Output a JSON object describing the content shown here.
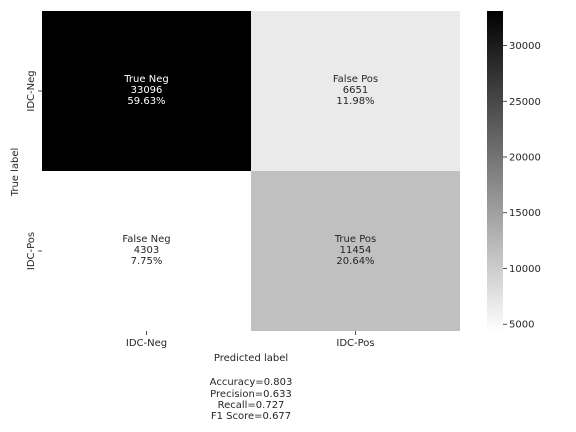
{
  "chart_data": {
    "type": "heatmap",
    "xlabel": "Predicted label",
    "ylabel": "True label",
    "x_categories": [
      "IDC-Neg",
      "IDC-Pos"
    ],
    "y_categories": [
      "IDC-Neg",
      "IDC-Pos"
    ],
    "cells": [
      {
        "row": 0,
        "col": 0,
        "name": "True Neg",
        "count": 33096,
        "count_label": "33096",
        "percent": "59.63%"
      },
      {
        "row": 0,
        "col": 1,
        "name": "False Pos",
        "count": 6651,
        "count_label": "6651",
        "percent": "11.98%"
      },
      {
        "row": 1,
        "col": 0,
        "name": "False Neg",
        "count": 4303,
        "count_label": "4303",
        "percent": "7.75%"
      },
      {
        "row": 1,
        "col": 1,
        "name": "True Pos",
        "count": 11454,
        "count_label": "11454",
        "percent": "20.64%"
      }
    ],
    "colormap": {
      "low_color": "#ffffff",
      "high_color": "#000000"
    },
    "colorbar": {
      "vmin": 4303,
      "vmax": 33096,
      "ticks": [
        5000,
        10000,
        15000,
        20000,
        25000,
        30000
      ],
      "tick_labels": [
        "5000",
        "10000",
        "15000",
        "20000",
        "25000",
        "30000"
      ]
    },
    "metrics": [
      "Accuracy=0.803",
      "Precision=0.633",
      "Recall=0.727",
      "F1 Score=0.677"
    ]
  }
}
